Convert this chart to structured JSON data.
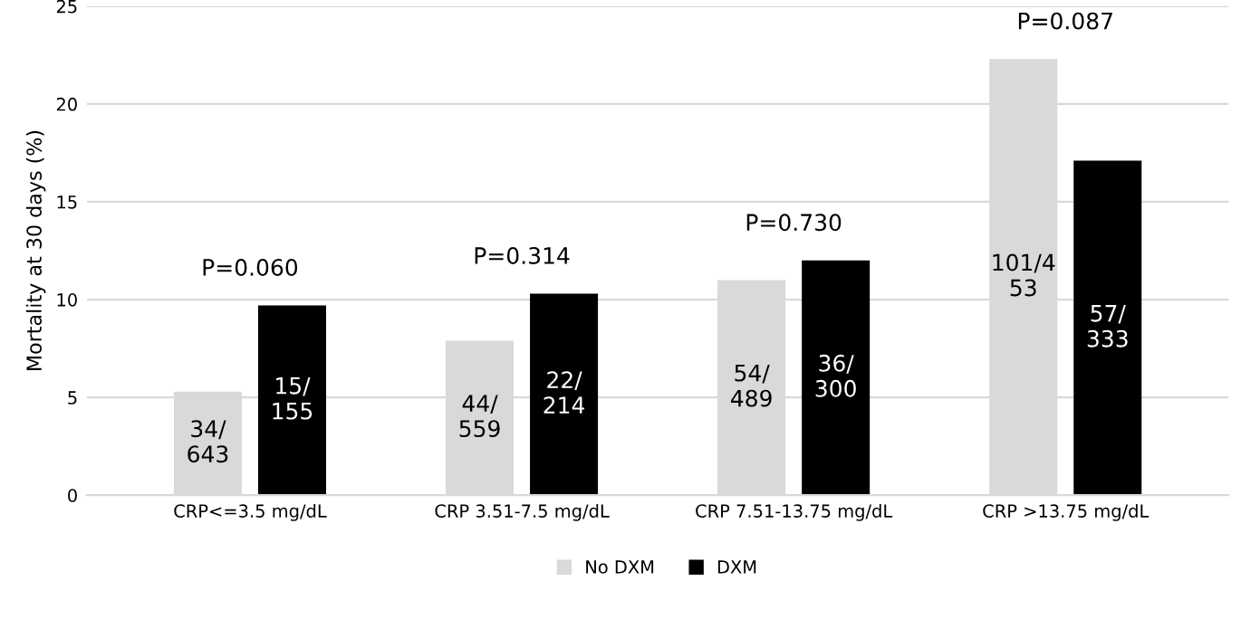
{
  "chart_data": {
    "type": "bar",
    "ylabel": "Mortality at 30 days (%)",
    "categories": [
      "CRP<=3.5 mg/dL",
      "CRP 3.51-7.5 mg/dL",
      "CRP 7.51-13.75 mg/dL",
      "CRP >13.75 mg/dL"
    ],
    "series": [
      {
        "name": "No DXM",
        "color": "#d9d9d9",
        "values": [
          5.3,
          7.9,
          11.0,
          22.3
        ],
        "value_labels": [
          "34/\n643",
          "44/\n559",
          "54/\n489",
          "101/4\n53"
        ]
      },
      {
        "name": "DXM",
        "color": "#000000",
        "values": [
          9.7,
          10.3,
          12.0,
          17.1
        ],
        "value_labels": [
          "15/\n155",
          "22/\n214",
          "36/\n300",
          "57/\n333"
        ]
      }
    ],
    "ylim": [
      0,
      25
    ],
    "yticks": [
      0,
      5,
      10,
      15,
      20,
      25
    ],
    "grid": "y",
    "legend": "bottom",
    "annotations": [
      "P=0.060",
      "P=0.314",
      "P=0.730",
      "P=0.087"
    ]
  }
}
